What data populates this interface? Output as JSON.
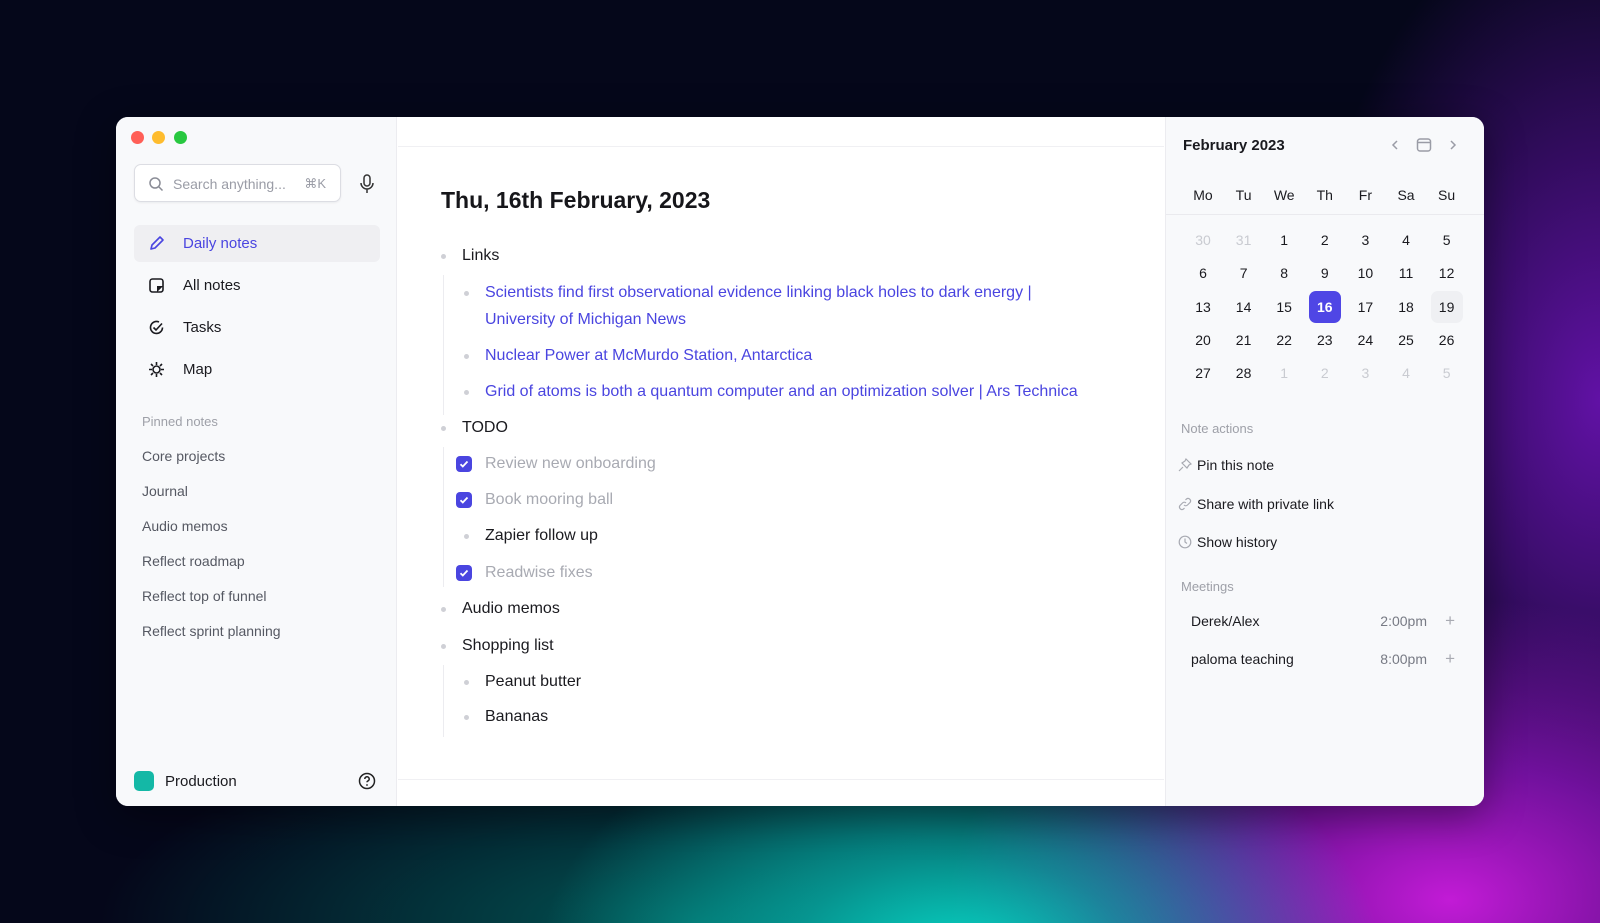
{
  "sidebar": {
    "search": {
      "placeholder": "Search anything...",
      "shortcut": "⌘K"
    },
    "nav": [
      {
        "label": "Daily notes",
        "icon": "pencil-icon",
        "active": true
      },
      {
        "label": "All notes",
        "icon": "note-icon"
      },
      {
        "label": "Tasks",
        "icon": "check-circle-icon"
      },
      {
        "label": "Map",
        "icon": "map-icon"
      }
    ],
    "pinned_header": "Pinned notes",
    "pinned": [
      "Core projects",
      "Journal",
      "Audio memos",
      "Reflect roadmap",
      "Reflect top of funnel",
      "Reflect sprint planning"
    ],
    "workspace": {
      "label": "Production",
      "color": "#14b8a6"
    }
  },
  "note": {
    "title": "Thu, 16th February, 2023",
    "items": {
      "links": "Links",
      "link1a": "Scientists find first observational evidence linking black holes to dark energy |",
      "link1b": "University of Michigan News",
      "link2": "Nuclear Power at McMurdo Station, Antarctica",
      "link3": "Grid of atoms is both a quantum computer and an optimization solver | Ars Technica",
      "todo": "TODO",
      "t1": "Review new onboarding",
      "t2": "Book mooring ball",
      "t3": "Zapier follow up",
      "t4": "Readwise fixes",
      "audio": "Audio memos",
      "shopping": "Shopping list",
      "s1": "Peanut butter",
      "s2": "Bananas"
    },
    "tasks_checked": {
      "t1": true,
      "t2": true,
      "t4": true
    }
  },
  "calendar": {
    "title": "February 2023",
    "days": [
      "Mo",
      "Tu",
      "We",
      "Th",
      "Fr",
      "Sa",
      "Su"
    ],
    "weeks": [
      [
        "30",
        "31",
        "1",
        "2",
        "3",
        "4",
        "5"
      ],
      [
        "6",
        "7",
        "8",
        "9",
        "10",
        "11",
        "12"
      ],
      [
        "13",
        "14",
        "15",
        "16",
        "17",
        "18",
        "19"
      ],
      [
        "20",
        "21",
        "22",
        "23",
        "24",
        "25",
        "26"
      ],
      [
        "27",
        "28",
        "1",
        "2",
        "3",
        "4",
        "5"
      ]
    ],
    "selected": "16",
    "accent": "#4f46e5"
  },
  "actions": {
    "header": "Note actions",
    "items": [
      {
        "label": "Pin this note",
        "icon": "pin-icon"
      },
      {
        "label": "Share with private link",
        "icon": "link-icon"
      },
      {
        "label": "Show history",
        "icon": "clock-icon"
      }
    ]
  },
  "meetings": {
    "header": "Meetings",
    "items": [
      {
        "name": "Derek/Alex",
        "time": "2:00pm"
      },
      {
        "name": "paloma teaching",
        "time": "8:00pm"
      }
    ],
    "add": "+"
  }
}
